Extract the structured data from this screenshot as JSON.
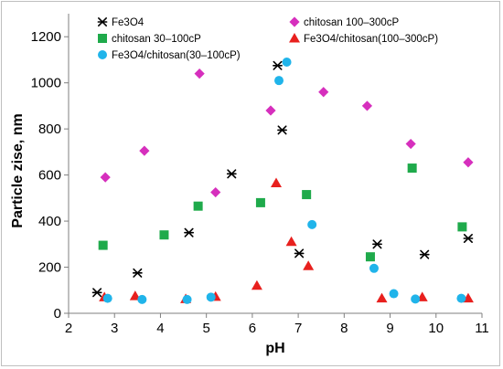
{
  "chart_data": {
    "type": "scatter",
    "xlabel": "pH",
    "ylabel": "Particle zise, nm",
    "xlim": [
      2,
      11
    ],
    "ylim": [
      0,
      1300
    ],
    "x_ticks": [
      "2",
      "3",
      "4",
      "5",
      "6",
      "7",
      "8",
      "9",
      "10",
      "11"
    ],
    "y_ticks": [
      "0",
      "200",
      "400",
      "600",
      "800",
      "1000",
      "1200"
    ],
    "grid": false,
    "legend_position": "top",
    "series": [
      {
        "name": "Fe3O4",
        "color": "#000000",
        "marker": "asterisk",
        "points": [
          [
            2.62,
            90
          ],
          [
            3.5,
            175
          ],
          [
            4.62,
            350
          ],
          [
            5.55,
            605
          ],
          [
            6.55,
            1075
          ],
          [
            6.65,
            795
          ],
          [
            7.02,
            260
          ],
          [
            8.72,
            300
          ],
          [
            9.75,
            255
          ],
          [
            10.7,
            325
          ]
        ]
      },
      {
        "name": "chitosan 100–300cP",
        "color": "#d62fbd",
        "marker": "diamond",
        "points": [
          [
            2.8,
            590
          ],
          [
            3.65,
            705
          ],
          [
            4.85,
            1040
          ],
          [
            5.2,
            525
          ],
          [
            6.4,
            880
          ],
          [
            7.55,
            960
          ],
          [
            8.5,
            900
          ],
          [
            9.45,
            735
          ],
          [
            10.7,
            655
          ]
        ]
      },
      {
        "name": "chitosan 30–100cP",
        "color": "#1faa4b",
        "marker": "square",
        "points": [
          [
            2.75,
            295
          ],
          [
            4.08,
            340
          ],
          [
            4.82,
            465
          ],
          [
            6.18,
            480
          ],
          [
            7.18,
            515
          ],
          [
            8.57,
            245
          ],
          [
            9.48,
            630
          ],
          [
            10.57,
            375
          ]
        ]
      },
      {
        "name": "Fe3O4/chitosan(100–300cP)",
        "color": "#e8201e",
        "marker": "triangle",
        "points": [
          [
            2.78,
            70
          ],
          [
            3.45,
            75
          ],
          [
            4.55,
            62
          ],
          [
            5.2,
            72
          ],
          [
            6.1,
            120
          ],
          [
            6.52,
            565
          ],
          [
            6.85,
            310
          ],
          [
            7.22,
            205
          ],
          [
            8.82,
            65
          ],
          [
            9.7,
            70
          ],
          [
            10.7,
            65
          ]
        ]
      },
      {
        "name": "Fe3O4/chitosan(30–100cP)",
        "color": "#20b4ea",
        "marker": "circle",
        "points": [
          [
            2.85,
            65
          ],
          [
            3.6,
            60
          ],
          [
            4.58,
            60
          ],
          [
            5.1,
            70
          ],
          [
            6.58,
            1010
          ],
          [
            6.75,
            1090
          ],
          [
            7.3,
            385
          ],
          [
            8.65,
            195
          ],
          [
            9.08,
            85
          ],
          [
            9.55,
            62
          ],
          [
            10.55,
            65
          ]
        ]
      }
    ]
  }
}
